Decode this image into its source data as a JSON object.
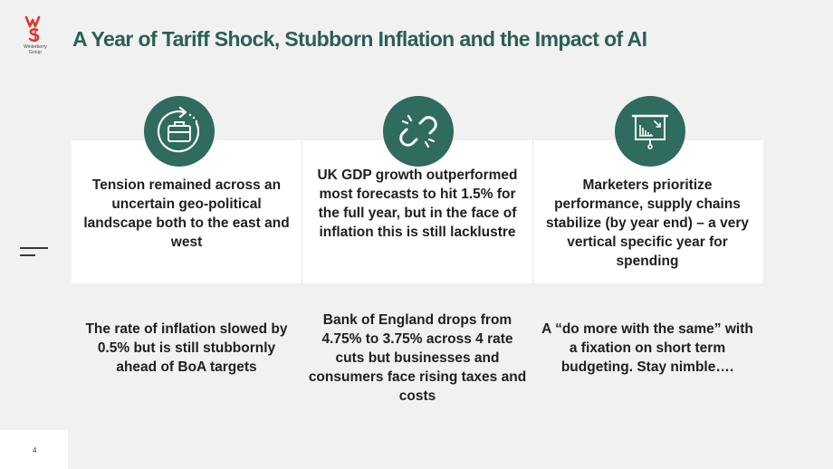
{
  "logo": {
    "text": "Winterberry Group",
    "colors": {
      "brand_red": "#d93a2b"
    }
  },
  "title": "A Year of Tariff Shock, Stubborn Inflation and the Impact of AI",
  "colors": {
    "title": "#2b5f56",
    "icon_bg": "#2f6b5e",
    "background": "#f1f1f1"
  },
  "columns": [
    {
      "icon": "briefcase-refresh-icon",
      "top_text": "Tension remained across an uncertain geo-political landscape both to the east and west",
      "bottom_text": "The rate of inflation slowed by 0.5% but is still stubbornly ahead of BoA targets"
    },
    {
      "icon": "broken-link-icon",
      "top_text": "UK GDP growth outperformed most forecasts to hit 1.5% for the full year, but in the face of inflation this is still lacklustre",
      "bottom_text": "Bank of England  drops from 4.75% to 3.75% across 4 rate cuts but businesses and consumers face rising taxes and costs"
    },
    {
      "icon": "presentation-chart-icon",
      "top_text": "Marketers prioritize performance, supply chains stabilize (by year end) – a very vertical specific year for spending",
      "bottom_text": "A “do more with the same” with a fixation on short term budgeting.   Stay nimble…."
    }
  ],
  "page_number": "4"
}
